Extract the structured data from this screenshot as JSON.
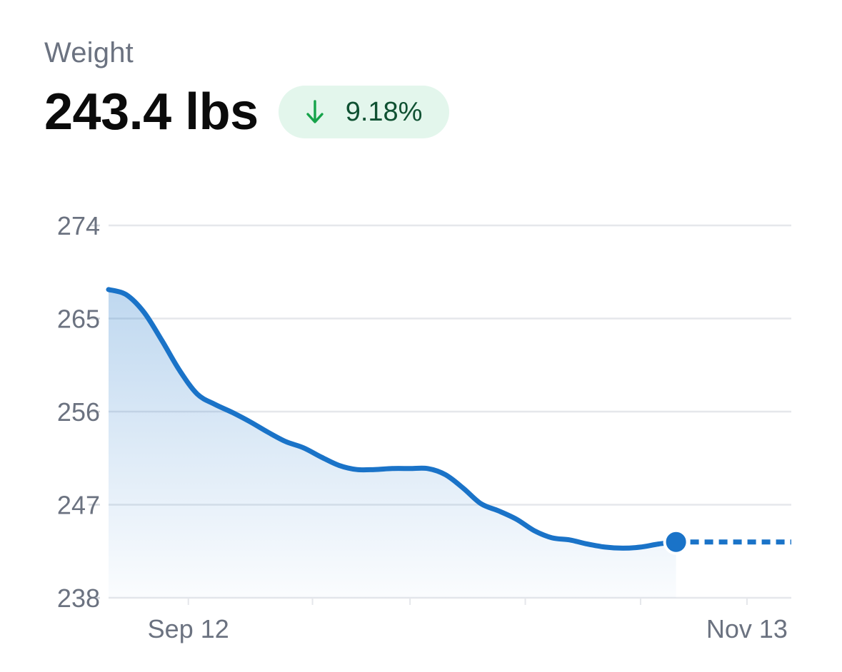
{
  "header": {
    "label": "Weight",
    "value": "243.4 lbs",
    "change": {
      "direction": "down",
      "text": "9.18%",
      "icon": "arrow-down-icon",
      "color": "#16a34a"
    }
  },
  "chart_data": {
    "type": "area",
    "y_ticks": [
      274,
      265,
      256,
      247,
      238
    ],
    "ylim": [
      238,
      274
    ],
    "x_ticks": [
      {
        "label": "Sep 12",
        "x": 9
      },
      {
        "label": "Nov 13",
        "x": 72
      }
    ],
    "xlim": [
      0,
      77
    ],
    "grid": true,
    "series": [
      {
        "points": [
          [
            0,
            267.8
          ],
          [
            2,
            267.3
          ],
          [
            4,
            265.6
          ],
          [
            6,
            262.9
          ],
          [
            8,
            260.0
          ],
          [
            10,
            257.7
          ],
          [
            12,
            256.7
          ],
          [
            14,
            255.9
          ],
          [
            16,
            255.0
          ],
          [
            18,
            254.0
          ],
          [
            20,
            253.1
          ],
          [
            22,
            252.5
          ],
          [
            24,
            251.6
          ],
          [
            26,
            250.8
          ],
          [
            28,
            250.4
          ],
          [
            30,
            250.4
          ],
          [
            32,
            250.5
          ],
          [
            34,
            250.5
          ],
          [
            36,
            250.5
          ],
          [
            38,
            249.9
          ],
          [
            40,
            248.6
          ],
          [
            42,
            247.1
          ],
          [
            44,
            246.4
          ],
          [
            46,
            245.6
          ],
          [
            48,
            244.5
          ],
          [
            50,
            243.8
          ],
          [
            52,
            243.6
          ],
          [
            54,
            243.2
          ],
          [
            56,
            242.9
          ],
          [
            58,
            242.8
          ],
          [
            60,
            242.9
          ],
          [
            62,
            243.2
          ],
          [
            64,
            243.4
          ]
        ],
        "color": "#1a73c8",
        "last_point_marker": true
      }
    ]
  }
}
